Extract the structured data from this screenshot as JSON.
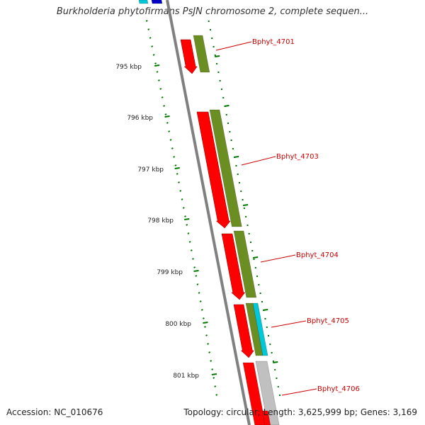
{
  "title": "Burkholderia phytofirmans PsJN chromosome 2, complete sequen...",
  "footer": {
    "accession": "Accession: NC_010676",
    "summary": "Topology: circular; Length: 3,625,999 bp; Genes: 3,169"
  },
  "colors": {
    "forward_gene": "#ff0000",
    "cds": "#6b8e23",
    "teal_feature": "#00c8d8",
    "blue_feature": "#0000c8",
    "grey_feature": "#c0c0c0",
    "ruler_ticks": "#007700",
    "label_text": "#cc0000"
  },
  "ruler_labels": [
    "795 kbp",
    "796 kbp",
    "797 kbp",
    "798 kbp",
    "799 kbp",
    "800 kbp",
    "801 kbp"
  ],
  "gene_labels": [
    "Bphyt_4701",
    "Bphyt_4703",
    "Bphyt_4704",
    "Bphyt_4705",
    "Bphyt_4706"
  ]
}
